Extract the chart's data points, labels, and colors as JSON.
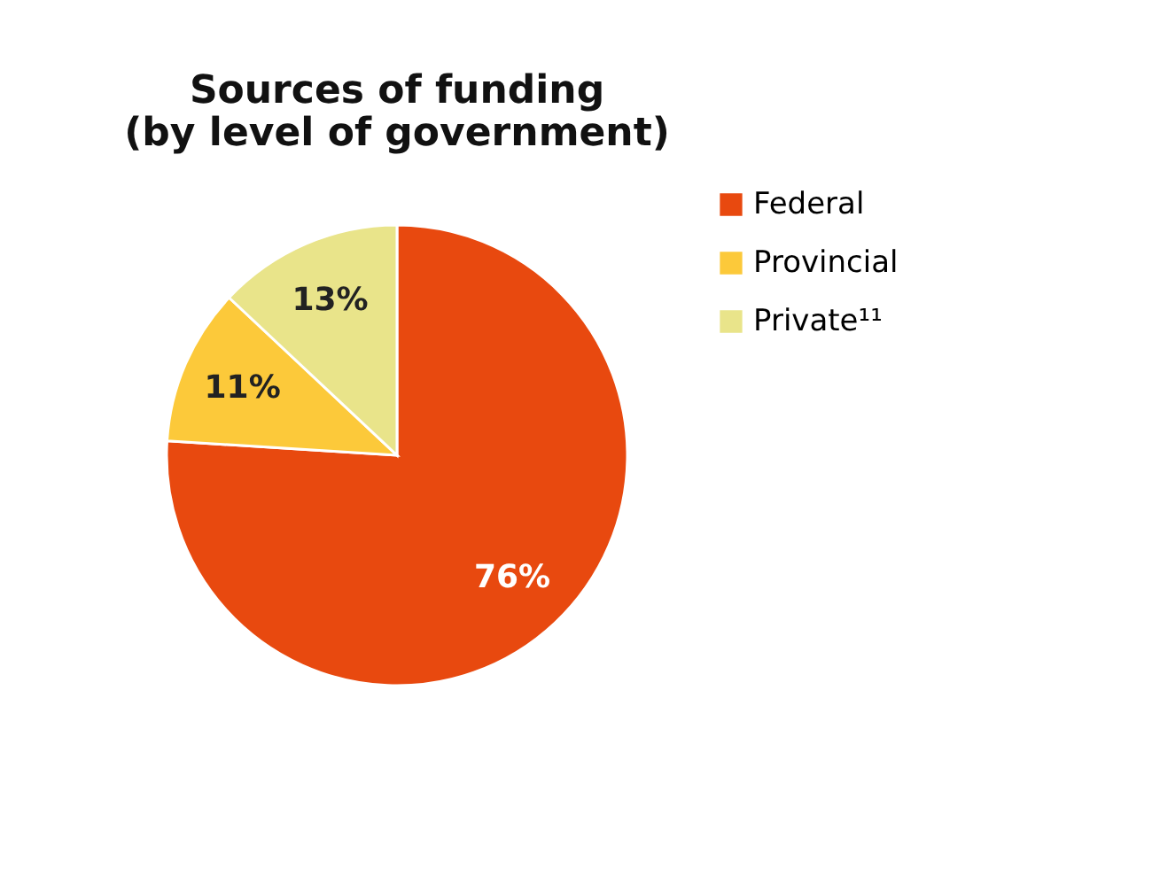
{
  "chart_data": {
    "type": "pie",
    "title": "Sources of funding\n(by level of government)",
    "categories": [
      "Federal",
      "Provincial",
      "Private¹¹"
    ],
    "values": [
      76,
      11,
      13
    ],
    "colors": [
      "#e8490f",
      "#fcc93a",
      "#e9e48a"
    ],
    "value_labels": [
      "76%",
      "11%",
      "13%"
    ],
    "legend": "right"
  }
}
